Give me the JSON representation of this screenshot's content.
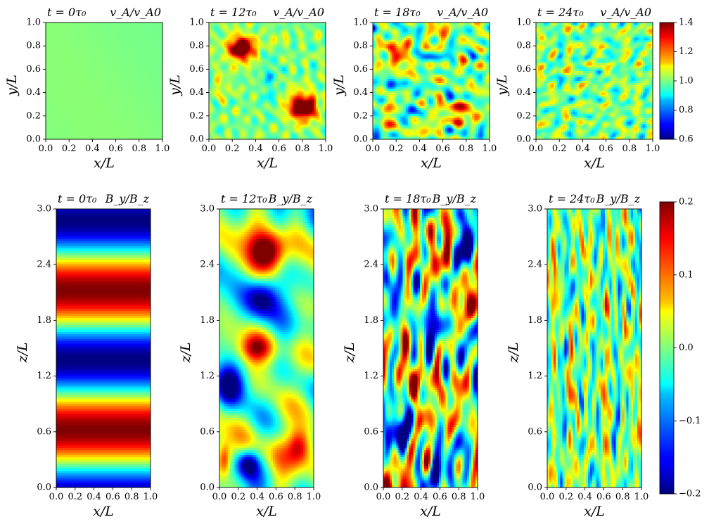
{
  "chart_data": [
    {
      "type": "heatmap",
      "row": "top",
      "colorbar": {
        "min": 0.6,
        "max": 1.4,
        "ticks": [
          "0.6",
          "0.8",
          "1.0",
          "1.2",
          "1.4"
        ]
      },
      "panels": [
        {
          "time_label": "t = 0τ₀",
          "quantity_label": "v_A/v_A0",
          "xlabel": "x/L",
          "ylabel": "y/L",
          "xlim": [
            0,
            1
          ],
          "ylim": [
            0,
            1
          ],
          "xticks": [
            "0.0",
            "0.2",
            "0.4",
            "0.6",
            "0.8",
            "1.0"
          ],
          "yticks": [
            "0.0",
            "0.2",
            "0.4",
            "0.6",
            "0.8",
            "1.0"
          ]
        },
        {
          "time_label": "t = 12τ₀",
          "quantity_label": "v_A/v_A0",
          "xlabel": "x/L",
          "ylabel": "y/L",
          "xlim": [
            0,
            1
          ],
          "ylim": [
            0,
            1
          ],
          "xticks": [
            "0.0",
            "0.2",
            "0.4",
            "0.6",
            "0.8",
            "1.0"
          ],
          "yticks": [
            "0.0",
            "0.2",
            "0.4",
            "0.6",
            "0.8",
            "1.0"
          ]
        },
        {
          "time_label": "t = 18τ₀",
          "quantity_label": "v_A/v_A0",
          "xlabel": "x/L",
          "ylabel": "y/L",
          "xlim": [
            0,
            1
          ],
          "ylim": [
            0,
            1
          ],
          "xticks": [
            "0.0",
            "0.2",
            "0.4",
            "0.6",
            "0.8",
            "1.0"
          ],
          "yticks": [
            "0.0",
            "0.2",
            "0.4",
            "0.6",
            "0.8",
            "1.0"
          ]
        },
        {
          "time_label": "t = 24τ₀",
          "quantity_label": "v_A/v_A0",
          "xlabel": "x/L",
          "ylabel": "y/L",
          "xlim": [
            0,
            1
          ],
          "ylim": [
            0,
            1
          ],
          "xticks": [
            "0.0",
            "0.2",
            "0.4",
            "0.6",
            "0.8",
            "1.0"
          ],
          "yticks": [
            "0.0",
            "0.2",
            "0.4",
            "0.6",
            "0.8",
            "1.0"
          ]
        }
      ]
    },
    {
      "type": "heatmap",
      "row": "bottom",
      "colorbar": {
        "min": -0.2,
        "max": 0.2,
        "ticks": [
          "−0.2",
          "−0.1",
          "0.0",
          "0.1",
          "0.2"
        ]
      },
      "panels": [
        {
          "time_label": "t = 0τ₀",
          "quantity_label": "B_y/B_z",
          "xlabel": "x/L",
          "ylabel": "z/L",
          "xlim": [
            0,
            1
          ],
          "ylim": [
            0,
            3
          ],
          "xticks": [
            "0.0",
            "0.2",
            "0.4",
            "0.6",
            "0.8",
            "1.0"
          ],
          "yticks": [
            "0.0",
            "0.6",
            "1.2",
            "1.8",
            "2.4",
            "3.0"
          ]
        },
        {
          "time_label": "t = 12τ₀",
          "quantity_label": "B_y/B_z",
          "xlabel": "x/L",
          "ylabel": "z/L",
          "xlim": [
            0,
            1
          ],
          "ylim": [
            0,
            3
          ],
          "xticks": [
            "0.0",
            "0.2",
            "0.4",
            "0.6",
            "0.8",
            "1.0"
          ],
          "yticks": [
            "0.0",
            "0.6",
            "1.2",
            "1.8",
            "2.4",
            "3.0"
          ]
        },
        {
          "time_label": "t = 18τ₀",
          "quantity_label": "B_y/B_z",
          "xlabel": "x/L",
          "ylabel": "z/L",
          "xlim": [
            0,
            1
          ],
          "ylim": [
            0,
            3
          ],
          "xticks": [
            "0.0",
            "0.2",
            "0.4",
            "0.6",
            "0.8",
            "1.0"
          ],
          "yticks": [
            "0.0",
            "0.6",
            "1.2",
            "1.8",
            "2.4",
            "3.0"
          ]
        },
        {
          "time_label": "t = 24τ₀",
          "quantity_label": "B_y/B_z",
          "xlabel": "x/L",
          "ylabel": "z/L",
          "xlim": [
            0,
            1
          ],
          "ylim": [
            0,
            3
          ],
          "xticks": [
            "0.0",
            "0.2",
            "0.4",
            "0.6",
            "0.8",
            "1.0"
          ],
          "yticks": [
            "0.0",
            "0.6",
            "1.2",
            "1.8",
            "2.4",
            "3.0"
          ]
        }
      ]
    }
  ]
}
